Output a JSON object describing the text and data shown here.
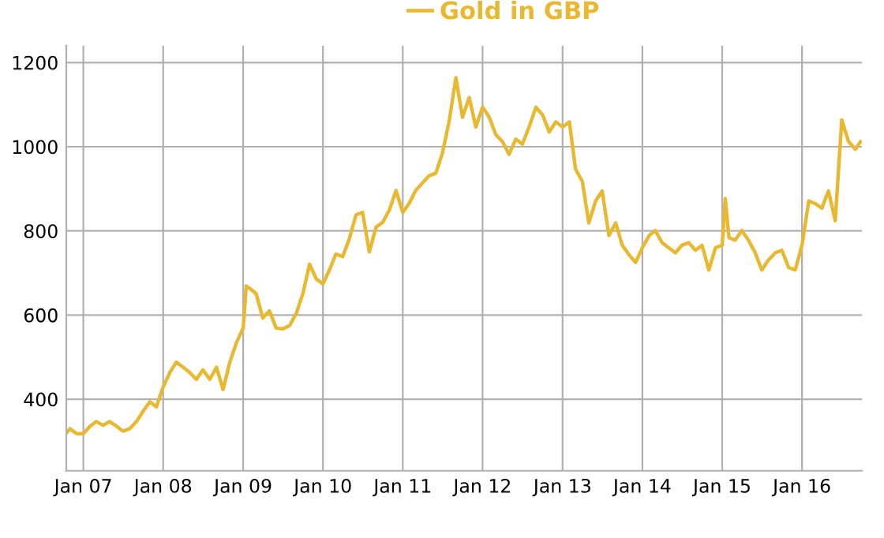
{
  "chart_data": {
    "type": "line",
    "legend": "top",
    "grid": true,
    "marker": "none",
    "line_style": "solid",
    "x": [
      "2006-10-15",
      "2006-11-01",
      "2006-12-01",
      "2007-01-01",
      "2007-02-01",
      "2007-03-01",
      "2007-04-01",
      "2007-05-01",
      "2007-06-01",
      "2007-07-01",
      "2007-08-01",
      "2007-09-01",
      "2007-10-01",
      "2007-11-01",
      "2007-12-01",
      "2008-01-01",
      "2008-02-01",
      "2008-03-01",
      "2008-04-01",
      "2008-05-01",
      "2008-06-01",
      "2008-07-01",
      "2008-08-01",
      "2008-09-01",
      "2008-10-01",
      "2008-11-01",
      "2008-12-01",
      "2009-01-01",
      "2009-01-15",
      "2009-02-01",
      "2009-03-01",
      "2009-04-01",
      "2009-05-01",
      "2009-06-01",
      "2009-07-01",
      "2009-08-01",
      "2009-09-01",
      "2009-10-01",
      "2009-11-01",
      "2009-12-01",
      "2010-01-01",
      "2010-02-01",
      "2010-03-01",
      "2010-04-01",
      "2010-05-01",
      "2010-06-01",
      "2010-07-01",
      "2010-08-01",
      "2010-09-01",
      "2010-10-01",
      "2010-11-01",
      "2010-12-01",
      "2011-01-01",
      "2011-02-01",
      "2011-03-01",
      "2011-04-01",
      "2011-05-01",
      "2011-06-01",
      "2011-07-01",
      "2011-08-01",
      "2011-09-01",
      "2011-10-01",
      "2011-11-01",
      "2011-12-01",
      "2012-01-01",
      "2012-02-01",
      "2012-03-01",
      "2012-04-01",
      "2012-05-01",
      "2012-06-01",
      "2012-07-01",
      "2012-08-01",
      "2012-09-01",
      "2012-10-01",
      "2012-11-01",
      "2012-12-01",
      "2013-01-01",
      "2013-02-01",
      "2013-03-01",
      "2013-04-01",
      "2013-05-01",
      "2013-06-01",
      "2013-07-01",
      "2013-08-01",
      "2013-09-01",
      "2013-10-01",
      "2013-11-01",
      "2013-12-01",
      "2014-01-01",
      "2014-02-01",
      "2014-03-01",
      "2014-04-01",
      "2014-05-01",
      "2014-06-01",
      "2014-07-01",
      "2014-08-01",
      "2014-09-01",
      "2014-10-01",
      "2014-11-01",
      "2014-12-01",
      "2015-01-01",
      "2015-01-15",
      "2015-02-01",
      "2015-03-01",
      "2015-04-01",
      "2015-05-01",
      "2015-06-01",
      "2015-07-01",
      "2015-08-01",
      "2015-09-01",
      "2015-10-01",
      "2015-11-01",
      "2015-12-01",
      "2016-01-01",
      "2016-02-01",
      "2016-03-01",
      "2016-04-01",
      "2016-05-01",
      "2016-06-01",
      "2016-07-01",
      "2016-08-01",
      "2016-09-01",
      "2016-09-25"
    ],
    "series": [
      {
        "name": "Gold in GBP",
        "color": "#e8b830",
        "values": [
          320,
          330,
          318,
          318,
          336,
          347,
          338,
          347,
          336,
          324,
          330,
          347,
          371,
          394,
          382,
          429,
          464,
          488,
          476,
          464,
          447,
          470,
          447,
          476,
          423,
          488,
          534,
          569,
          669,
          663,
          651,
          593,
          610,
          569,
          567,
          575,
          604,
          651,
          721,
          686,
          674,
          709,
          745,
          739,
          780,
          838,
          844,
          750,
          809,
          820,
          850,
          896,
          844,
          867,
          896,
          914,
          931,
          937,
          984,
          1060,
          1164,
          1070,
          1117,
          1047,
          1094,
          1070,
          1029,
          1012,
          982,
          1018,
          1006,
          1047,
          1094,
          1076,
          1035,
          1059,
          1047,
          1059,
          947,
          918,
          819,
          871,
          895,
          789,
          819,
          766,
          743,
          725,
          760,
          789,
          801,
          772,
          760,
          748,
          766,
          772,
          754,
          766,
          707,
          760,
          766,
          877,
          784,
          778,
          801,
          778,
          748,
          707,
          731,
          748,
          754,
          713,
          707,
          766,
          871,
          865,
          854,
          895,
          824,
          1064,
          1012,
          994,
          1012
        ]
      }
    ],
    "xlim": [
      "2006-10-15",
      "2016-10-01"
    ],
    "xticks": [
      {
        "value": "2007-01-01",
        "label": "Jan 07"
      },
      {
        "value": "2008-01-01",
        "label": "Jan 08"
      },
      {
        "value": "2009-01-01",
        "label": "Jan 09"
      },
      {
        "value": "2010-01-01",
        "label": "Jan 10"
      },
      {
        "value": "2011-01-01",
        "label": "Jan 11"
      },
      {
        "value": "2012-01-01",
        "label": "Jan 12"
      },
      {
        "value": "2013-01-01",
        "label": "Jan 13"
      },
      {
        "value": "2014-01-01",
        "label": "Jan 14"
      },
      {
        "value": "2015-01-01",
        "label": "Jan 15"
      },
      {
        "value": "2016-01-01",
        "label": "Jan 16"
      }
    ],
    "ylim": [
      230,
      1240
    ],
    "yticks": [
      400,
      600,
      800,
      1000,
      1200
    ]
  }
}
